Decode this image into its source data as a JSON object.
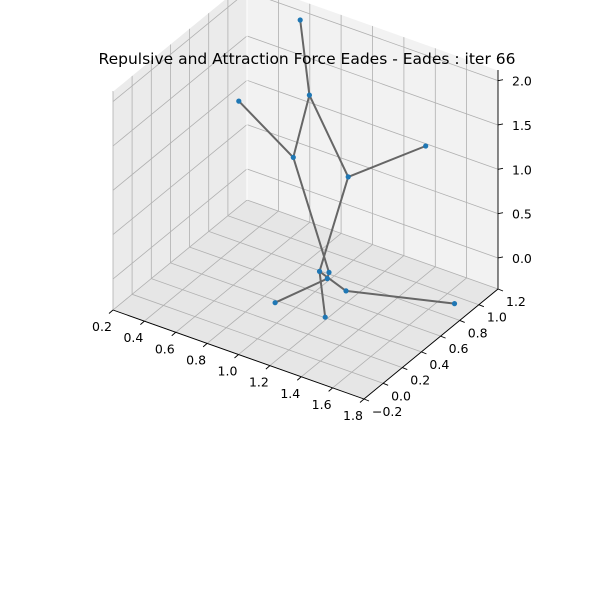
{
  "chart_data": {
    "type": "scatter",
    "title": "Repulsive and Attraction Force Eades - Eades : iter 66",
    "x_ticks": [
      "0.2",
      "0.4",
      "0.6",
      "0.8",
      "1.0",
      "1.2",
      "1.4",
      "1.6",
      "1.8"
    ],
    "y_ticks": [
      "−0.2",
      "0.0",
      "0.2",
      "0.4",
      "0.6",
      "0.8",
      "1.0",
      "1.2"
    ],
    "z_ticks": [
      "0.0",
      "0.5",
      "1.0",
      "1.5",
      "2.0"
    ],
    "xlim": [
      0.2,
      1.8
    ],
    "ylim": [
      -0.2,
      1.2
    ],
    "zlim": [
      0.0,
      2.0
    ],
    "node_color": "#1f77b4",
    "edge_color": "#666666",
    "nodes": [
      {
        "id": "n1",
        "x": 0.6,
        "y": 1.1,
        "z": 2.02
      },
      {
        "id": "n2",
        "x": 0.75,
        "y": 0.95,
        "z": 1.4
      },
      {
        "id": "n3",
        "x": 0.3,
        "y": 0.95,
        "z": 1.05
      },
      {
        "id": "n4",
        "x": 0.8,
        "y": 0.7,
        "z": 0.95
      },
      {
        "id": "n5",
        "x": 1.15,
        "y": 0.7,
        "z": 0.95
      },
      {
        "id": "n6",
        "x": 1.4,
        "y": 1.1,
        "z": 1.1
      },
      {
        "id": "n7",
        "x": 1.15,
        "y": 0.5,
        "z": 0.05
      },
      {
        "id": "n8",
        "x": 1.15,
        "y": 0.4,
        "z": 0.15
      },
      {
        "id": "n9",
        "x": 1.2,
        "y": 0.4,
        "z": 0.1
      },
      {
        "id": "n10",
        "x": 1.35,
        "y": 0.35,
        "z": 0.1
      },
      {
        "id": "n11",
        "x": 1.95,
        "y": 0.5,
        "z": 0.2
      },
      {
        "id": "n12",
        "x": 1.05,
        "y": 0.1,
        "z": 0.0
      },
      {
        "id": "n13",
        "x": 1.4,
        "y": 0.05,
        "z": 0.1
      }
    ],
    "edges": [
      [
        "n1",
        "n2"
      ],
      [
        "n2",
        "n4"
      ],
      [
        "n3",
        "n4"
      ],
      [
        "n2",
        "n5"
      ],
      [
        "n5",
        "n6"
      ],
      [
        "n5",
        "n8"
      ],
      [
        "n4",
        "n7"
      ],
      [
        "n7",
        "n9"
      ],
      [
        "n8",
        "n10"
      ],
      [
        "n10",
        "n11"
      ],
      [
        "n9",
        "n12"
      ],
      [
        "n8",
        "n13"
      ]
    ]
  }
}
